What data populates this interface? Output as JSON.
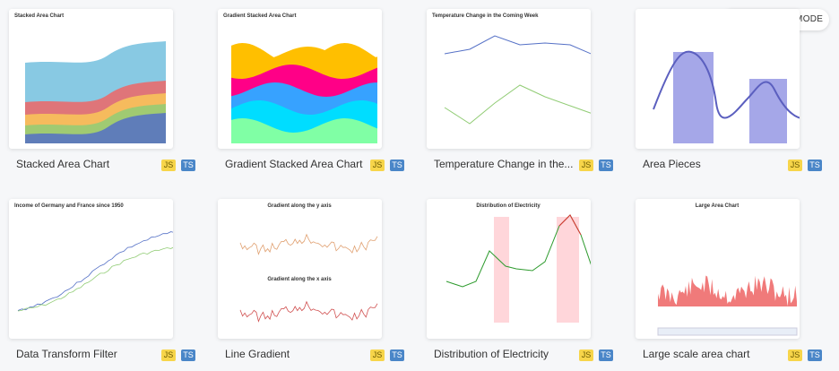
{
  "toggle": {
    "label": "DARK MODE"
  },
  "cards": [
    {
      "title": "Stacked Area Chart",
      "thumb_titles": [
        "Stacked Area Chart"
      ],
      "badges": [
        "JS",
        "TS"
      ]
    },
    {
      "title": "Gradient Stacked Area Chart",
      "thumb_titles": [
        "Gradient Stacked Area Chart"
      ],
      "badges": [
        "JS",
        "TS"
      ]
    },
    {
      "title": "Temperature Change in the...",
      "thumb_titles": [
        "Temperature Change in the Coming Week"
      ],
      "badges": [
        "JS",
        "TS"
      ]
    },
    {
      "title": "Area Pieces",
      "thumb_titles": [],
      "badges": [
        "JS",
        "TS"
      ]
    },
    {
      "title": "Data Transform Filter",
      "thumb_titles": [
        "Income of Germany and France since 1950"
      ],
      "badges": [
        "JS",
        "TS"
      ]
    },
    {
      "title": "Line Gradient",
      "thumb_titles": [
        "Gradient along the y axis",
        "Gradient along the x axis"
      ],
      "badges": [
        "JS",
        "TS"
      ]
    },
    {
      "title": "Distribution of Electricity",
      "thumb_titles": [
        "Distribution of Electricity"
      ],
      "badges": [
        "JS",
        "TS"
      ]
    },
    {
      "title": "Large scale area chart",
      "thumb_titles": [
        "Large Area Chart"
      ],
      "badges": [
        "JS",
        "TS"
      ]
    }
  ]
}
